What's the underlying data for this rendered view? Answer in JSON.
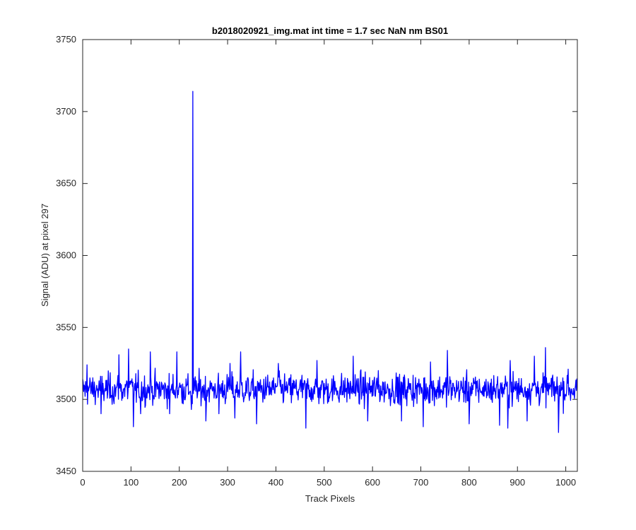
{
  "chart_data": {
    "type": "line",
    "title": "b2018020921_img.mat int time = 1.7 sec  NaN nm BS01",
    "xlabel": "Track Pixels",
    "ylabel": "Signal (ADU) at pixel 297",
    "xlim": [
      0,
      1024
    ],
    "ylim": [
      3450,
      3750
    ],
    "xticks": [
      "0",
      "100",
      "200",
      "300",
      "400",
      "500",
      "600",
      "700",
      "800",
      "900",
      "1000"
    ],
    "yticks": [
      "3450",
      "3500",
      "3550",
      "3600",
      "3650",
      "3700",
      "3750"
    ],
    "grid": false,
    "legend": "none",
    "series": [
      {
        "color": "#0000ff",
        "baseline": 3507,
        "spikes": [
          {
            "x": 228,
            "y": 3714
          }
        ],
        "notable_points": [
          {
            "x": 9,
            "y": 3524
          },
          {
            "x": 38,
            "y": 3490
          },
          {
            "x": 75,
            "y": 3531
          },
          {
            "x": 95,
            "y": 3535
          },
          {
            "x": 105,
            "y": 3481
          },
          {
            "x": 120,
            "y": 3490
          },
          {
            "x": 140,
            "y": 3533
          },
          {
            "x": 180,
            "y": 3490
          },
          {
            "x": 195,
            "y": 3533
          },
          {
            "x": 225,
            "y": 3493
          },
          {
            "x": 255,
            "y": 3485
          },
          {
            "x": 282,
            "y": 3490
          },
          {
            "x": 305,
            "y": 3525
          },
          {
            "x": 315,
            "y": 3487
          },
          {
            "x": 327,
            "y": 3533
          },
          {
            "x": 360,
            "y": 3483
          },
          {
            "x": 405,
            "y": 3525
          },
          {
            "x": 462,
            "y": 3480
          },
          {
            "x": 485,
            "y": 3527
          },
          {
            "x": 560,
            "y": 3530
          },
          {
            "x": 590,
            "y": 3485
          },
          {
            "x": 612,
            "y": 3520
          },
          {
            "x": 660,
            "y": 3485
          },
          {
            "x": 705,
            "y": 3481
          },
          {
            "x": 720,
            "y": 3526
          },
          {
            "x": 755,
            "y": 3534
          },
          {
            "x": 800,
            "y": 3483
          },
          {
            "x": 863,
            "y": 3482
          },
          {
            "x": 880,
            "y": 3480
          },
          {
            "x": 885,
            "y": 3527
          },
          {
            "x": 920,
            "y": 3485
          },
          {
            "x": 935,
            "y": 3530
          },
          {
            "x": 958,
            "y": 3536
          },
          {
            "x": 985,
            "y": 3477
          },
          {
            "x": 1005,
            "y": 3521
          }
        ]
      }
    ]
  }
}
